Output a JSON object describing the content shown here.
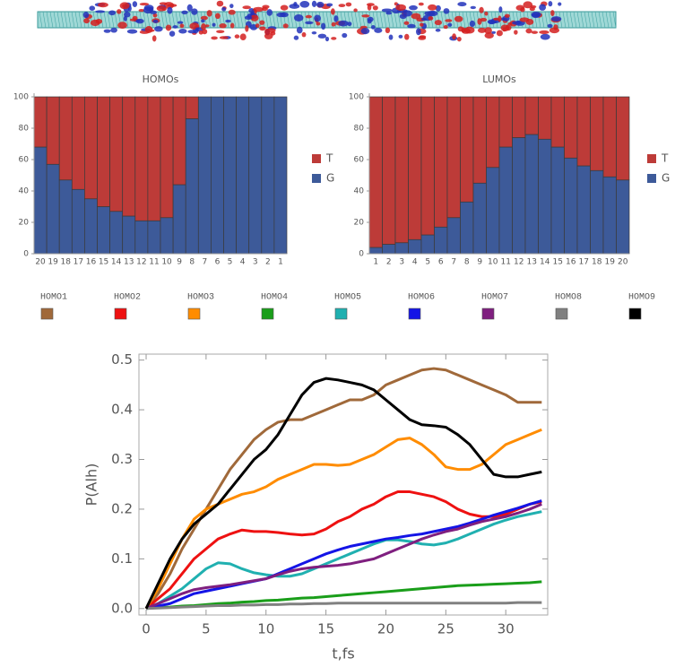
{
  "chart_data": [
    {
      "type": "bar",
      "stacked": true,
      "title": "HOMOs",
      "legend": "right",
      "categories": [
        "20",
        "19",
        "18",
        "17",
        "16",
        "15",
        "14",
        "13",
        "12",
        "11",
        "10",
        "9",
        "8",
        "7",
        "6",
        "5",
        "4",
        "3",
        "2",
        "1"
      ],
      "series": [
        {
          "name": "G",
          "color": "#3d5a99",
          "values": [
            68,
            57,
            47,
            41,
            35,
            30,
            27,
            24,
            21,
            21,
            23,
            44,
            86,
            100,
            100,
            100,
            100,
            100,
            100,
            100
          ]
        },
        {
          "name": "T",
          "color": "#bd3b38",
          "values": [
            32,
            43,
            53,
            59,
            65,
            70,
            73,
            76,
            79,
            79,
            77,
            56,
            14,
            0,
            0,
            0,
            0,
            0,
            0,
            0
          ]
        }
      ],
      "ylim": [
        0,
        100
      ],
      "yticks": [
        0,
        20,
        40,
        60,
        80,
        100
      ]
    },
    {
      "type": "bar",
      "stacked": true,
      "title": "LUMOs",
      "legend": "right",
      "categories": [
        "1",
        "2",
        "3",
        "4",
        "5",
        "6",
        "7",
        "8",
        "9",
        "10",
        "11",
        "12",
        "13",
        "14",
        "15",
        "16",
        "17",
        "18",
        "19",
        "20"
      ],
      "series": [
        {
          "name": "G",
          "color": "#3d5a99",
          "values": [
            4,
            6,
            7,
            9,
            12,
            17,
            23,
            33,
            45,
            55,
            68,
            74,
            76,
            73,
            68,
            61,
            56,
            53,
            49,
            47
          ]
        },
        {
          "name": "T",
          "color": "#bd3b38",
          "values": [
            96,
            94,
            93,
            91,
            88,
            83,
            77,
            67,
            55,
            45,
            32,
            26,
            24,
            27,
            32,
            39,
            44,
            47,
            51,
            53
          ]
        }
      ],
      "ylim": [
        0,
        100
      ],
      "yticks": [
        0,
        20,
        40,
        60,
        80,
        100
      ]
    },
    {
      "type": "line",
      "legend": "top",
      "x_label": "t,fs",
      "y_label": "P(Alh)",
      "x": [
        0,
        1,
        2,
        3,
        4,
        5,
        6,
        7,
        8,
        9,
        10,
        11,
        12,
        13,
        14,
        15,
        16,
        17,
        18,
        19,
        20,
        21,
        22,
        23,
        24,
        25,
        26,
        27,
        28,
        29,
        30,
        31,
        32,
        33
      ],
      "series": [
        {
          "name": "HOMO1",
          "color": "#a0693a",
          "values": [
            0,
            0.03,
            0.07,
            0.12,
            0.16,
            0.2,
            0.24,
            0.28,
            0.31,
            0.34,
            0.36,
            0.375,
            0.38,
            0.38,
            0.39,
            0.4,
            0.41,
            0.42,
            0.42,
            0.43,
            0.45,
            0.46,
            0.47,
            0.48,
            0.483,
            0.48,
            0.47,
            0.46,
            0.45,
            0.44,
            0.43,
            0.415,
            0.415,
            0.415
          ]
        },
        {
          "name": "HOMO2",
          "color": "#ee1111",
          "values": [
            0,
            0.02,
            0.04,
            0.07,
            0.1,
            0.12,
            0.14,
            0.15,
            0.158,
            0.155,
            0.155,
            0.153,
            0.15,
            0.148,
            0.15,
            0.16,
            0.175,
            0.185,
            0.2,
            0.21,
            0.225,
            0.235,
            0.235,
            0.23,
            0.225,
            0.215,
            0.2,
            0.19,
            0.185,
            0.185,
            0.19,
            0.2,
            0.21,
            0.215
          ]
        },
        {
          "name": "HOMO3",
          "color": "#ff8c00",
          "values": [
            0,
            0.04,
            0.09,
            0.14,
            0.18,
            0.2,
            0.21,
            0.22,
            0.23,
            0.235,
            0.245,
            0.26,
            0.27,
            0.28,
            0.29,
            0.29,
            0.288,
            0.29,
            0.3,
            0.31,
            0.325,
            0.34,
            0.343,
            0.33,
            0.31,
            0.285,
            0.28,
            0.28,
            0.29,
            0.31,
            0.33,
            0.34,
            0.35,
            0.36
          ]
        },
        {
          "name": "HOMO4",
          "color": "#1a9e1a",
          "values": [
            0,
            0.002,
            0.003,
            0.005,
            0.006,
            0.008,
            0.01,
            0.011,
            0.013,
            0.014,
            0.016,
            0.017,
            0.019,
            0.021,
            0.022,
            0.024,
            0.026,
            0.028,
            0.03,
            0.032,
            0.034,
            0.036,
            0.038,
            0.04,
            0.042,
            0.044,
            0.046,
            0.047,
            0.048,
            0.049,
            0.05,
            0.051,
            0.052,
            0.054
          ]
        },
        {
          "name": "HOMO5",
          "color": "#20b0b0",
          "values": [
            0,
            0.01,
            0.025,
            0.04,
            0.06,
            0.08,
            0.092,
            0.09,
            0.08,
            0.072,
            0.068,
            0.065,
            0.065,
            0.07,
            0.08,
            0.09,
            0.1,
            0.11,
            0.12,
            0.13,
            0.138,
            0.138,
            0.135,
            0.13,
            0.128,
            0.132,
            0.14,
            0.15,
            0.16,
            0.17,
            0.178,
            0.185,
            0.19,
            0.195
          ]
        },
        {
          "name": "HOMO6",
          "color": "#1414e6",
          "values": [
            0,
            0.005,
            0.01,
            0.02,
            0.03,
            0.035,
            0.04,
            0.045,
            0.05,
            0.055,
            0.06,
            0.07,
            0.08,
            0.09,
            0.1,
            0.11,
            0.118,
            0.125,
            0.13,
            0.135,
            0.14,
            0.143,
            0.147,
            0.15,
            0.155,
            0.16,
            0.165,
            0.172,
            0.18,
            0.188,
            0.195,
            0.202,
            0.21,
            0.217
          ]
        },
        {
          "name": "HOMO7",
          "color": "#7f1f7f",
          "values": [
            0,
            0.01,
            0.02,
            0.03,
            0.038,
            0.042,
            0.045,
            0.048,
            0.052,
            0.056,
            0.06,
            0.068,
            0.075,
            0.08,
            0.083,
            0.085,
            0.087,
            0.09,
            0.095,
            0.1,
            0.11,
            0.12,
            0.13,
            0.14,
            0.148,
            0.155,
            0.16,
            0.168,
            0.175,
            0.18,
            0.185,
            0.192,
            0.2,
            0.21
          ]
        },
        {
          "name": "HOMO8",
          "color": "#808080",
          "values": [
            0,
            0.001,
            0.002,
            0.003,
            0.004,
            0.005,
            0.006,
            0.006,
            0.007,
            0.007,
            0.008,
            0.008,
            0.009,
            0.009,
            0.01,
            0.01,
            0.011,
            0.011,
            0.011,
            0.011,
            0.011,
            0.011,
            0.011,
            0.011,
            0.011,
            0.011,
            0.011,
            0.011,
            0.011,
            0.011,
            0.011,
            0.012,
            0.012,
            0.012
          ]
        },
        {
          "name": "HOMO9",
          "color": "#000000",
          "values": [
            0,
            0.05,
            0.1,
            0.14,
            0.17,
            0.19,
            0.21,
            0.24,
            0.27,
            0.3,
            0.32,
            0.35,
            0.39,
            0.43,
            0.455,
            0.463,
            0.46,
            0.455,
            0.45,
            0.44,
            0.42,
            0.4,
            0.38,
            0.37,
            0.368,
            0.365,
            0.35,
            0.33,
            0.3,
            0.27,
            0.265,
            0.265,
            0.27,
            0.275
          ]
        }
      ],
      "xlim": [
        -0.6,
        33.5
      ],
      "xticks": [
        0,
        5,
        10,
        15,
        20,
        25,
        30
      ],
      "ylim": [
        -0.013,
        0.512
      ],
      "yticks": [
        {
          "value": 0,
          "label": "0.0"
        },
        0.1,
        0.2,
        0.3,
        0.4,
        0.5
      ]
    }
  ]
}
